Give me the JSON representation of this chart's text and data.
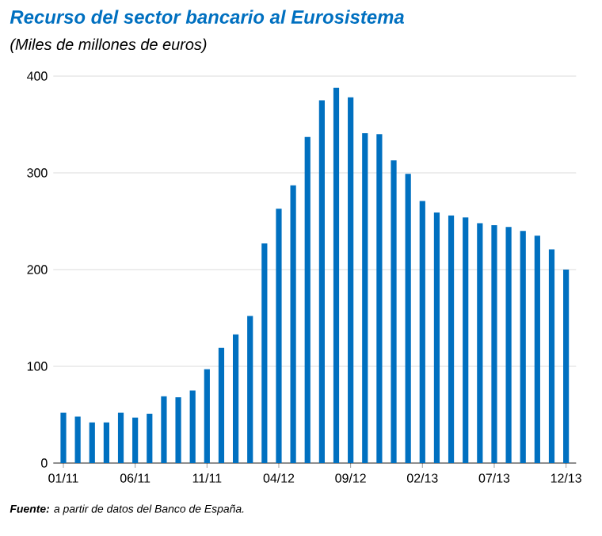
{
  "chart_data": {
    "type": "bar",
    "title": "Recurso del sector bancario al Eurosistema",
    "subtitle": "(Miles de millones de euros)",
    "categories": [
      "01/11",
      null,
      null,
      null,
      null,
      "06/11",
      null,
      null,
      null,
      null,
      "11/11",
      null,
      null,
      null,
      null,
      "04/12",
      null,
      null,
      null,
      null,
      "09/12",
      null,
      null,
      null,
      null,
      "02/13",
      null,
      null,
      null,
      null,
      "07/13",
      null,
      null,
      null,
      null,
      "12/13"
    ],
    "values": [
      52,
      48,
      42,
      42,
      52,
      47,
      51,
      69,
      68,
      75,
      97,
      119,
      133,
      152,
      227,
      263,
      287,
      337,
      375,
      388,
      378,
      341,
      340,
      313,
      299,
      271,
      259,
      256,
      254,
      248,
      246,
      244,
      240,
      235,
      221,
      200
    ],
    "color": "#0070c0",
    "ylim": [
      0,
      400
    ],
    "yticks": [
      0,
      100,
      200,
      300,
      400
    ],
    "grid": "y",
    "annotations": [
      "**Fuente:** a partir de datos del Banco de España."
    ]
  }
}
